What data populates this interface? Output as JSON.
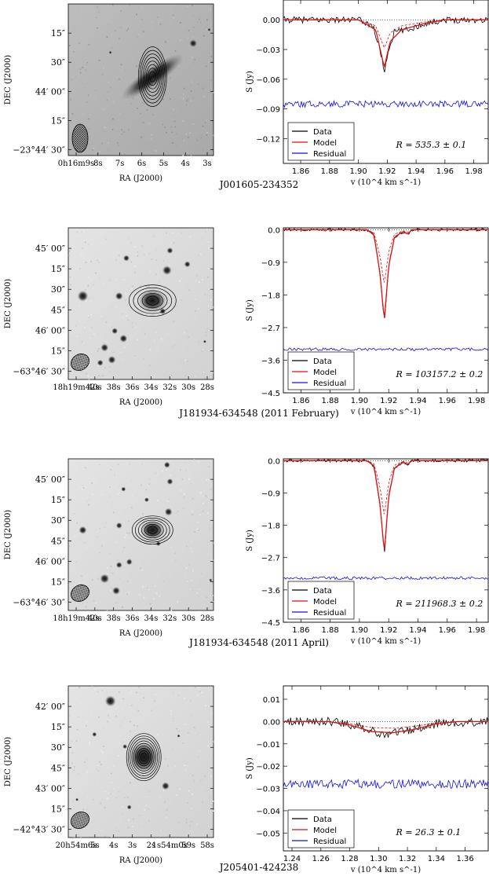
{
  "figure": {
    "panels": [
      {
        "source": "J001605-234352",
        "image": {
          "ylabel": "DEC (J2000)",
          "xlabel": "RA (J2000)",
          "yticks": [
            "15″",
            "30″",
            "44′ 00″",
            "15″",
            "−23°44′ 30″"
          ],
          "xticks": [
            "0h16m9s",
            "8s",
            "7s",
            "6s",
            "5s",
            "4s",
            "3s"
          ]
        },
        "chart_data": {
          "type": "line",
          "ylabel": "S (Jy)",
          "xlabel": "v (10^4 km s^-1)",
          "xlim": [
            1.848,
            1.99
          ],
          "ylim": [
            -0.145,
            0.02
          ],
          "yticks": [
            "0.00",
            "−0.03",
            "−0.06",
            "−0.09",
            "−0.12"
          ],
          "ytick_values": [
            0.0,
            -0.03,
            -0.06,
            -0.09,
            -0.12
          ],
          "xticks": [
            "1.86",
            "1.88",
            "1.90",
            "1.92",
            "1.94",
            "1.96",
            "1.98"
          ],
          "xtick_values": [
            1.86,
            1.88,
            1.9,
            1.92,
            1.94,
            1.96,
            1.98
          ],
          "legend": [
            "Data",
            "Model",
            "Residual"
          ],
          "annotation": "R = 535.3 ± 0.1",
          "series": [
            {
              "name": "Data",
              "points": [
                [
                  1.85,
                  0.0
                ],
                [
                  1.87,
                  0.0
                ],
                [
                  1.9,
                  0.0
                ],
                [
                  1.91,
                  -0.006
                ],
                [
                  1.915,
                  -0.03
                ],
                [
                  1.918,
                  -0.052
                ],
                [
                  1.921,
                  -0.03
                ],
                [
                  1.925,
                  -0.012
                ],
                [
                  1.935,
                  -0.01
                ],
                [
                  1.945,
                  -0.004
                ],
                [
                  1.96,
                  0.0
                ],
                [
                  1.99,
                  0.0
                ]
              ]
            },
            {
              "name": "Model",
              "points": [
                [
                  1.85,
                  0.0
                ],
                [
                  1.9,
                  0.0
                ],
                [
                  1.912,
                  -0.01
                ],
                [
                  1.918,
                  -0.048
                ],
                [
                  1.922,
                  -0.022
                ],
                [
                  1.93,
                  -0.01
                ],
                [
                  1.945,
                  -0.004
                ],
                [
                  1.96,
                  0.0
                ],
                [
                  1.99,
                  0.0
                ]
              ]
            },
            {
              "name": "Residual",
              "points": [
                [
                  1.85,
                  -0.085
                ],
                [
                  1.99,
                  -0.085
                ]
              ]
            }
          ]
        }
      },
      {
        "source": "J181934-634548 (2011 February)",
        "image": {
          "ylabel": "DEC (J2000)",
          "xlabel": "RA (J2000)",
          "yticks": [
            "45′ 00″",
            "15″",
            "30″",
            "45″",
            "46′ 00″",
            "15″",
            "−63°46′ 30″"
          ],
          "xticks": [
            "18h19m42s",
            "40s",
            "38s",
            "36s",
            "34s",
            "32s",
            "30s",
            "28s"
          ]
        },
        "chart_data": {
          "type": "line",
          "ylabel": "S (Jy)",
          "xlabel": "v (10^4 km s^-1)",
          "xlim": [
            1.848,
            1.988
          ],
          "ylim": [
            -4.5,
            0.05
          ],
          "yticks": [
            "0.0",
            "−0.9",
            "−1.8",
            "−2.7",
            "−3.6",
            "−4.5"
          ],
          "ytick_values": [
            0.0,
            -0.9,
            -1.8,
            -2.7,
            -3.6,
            -4.5
          ],
          "xticks": [
            "1.86",
            "1.88",
            "1.90",
            "1.92",
            "1.94",
            "1.96",
            "1.98"
          ],
          "xtick_values": [
            1.86,
            1.88,
            1.9,
            1.92,
            1.94,
            1.96,
            1.98
          ],
          "legend": [
            "Data",
            "Model",
            "Residual"
          ],
          "annotation": "R = 103157.2 ± 0.2",
          "series": [
            {
              "name": "Data",
              "points": [
                [
                  1.85,
                  0.0
                ],
                [
                  1.905,
                  0.0
                ],
                [
                  1.91,
                  -0.15
                ],
                [
                  1.914,
                  -1.2
                ],
                [
                  1.917,
                  -2.55
                ],
                [
                  1.92,
                  -1.0
                ],
                [
                  1.924,
                  -0.2
                ],
                [
                  1.93,
                  -0.05
                ],
                [
                  1.933,
                  -0.15
                ],
                [
                  1.936,
                  0.0
                ],
                [
                  1.99,
                  0.0
                ]
              ]
            },
            {
              "name": "Model",
              "points": [
                [
                  1.85,
                  0.0
                ],
                [
                  1.905,
                  0.0
                ],
                [
                  1.91,
                  -0.15
                ],
                [
                  1.914,
                  -1.2
                ],
                [
                  1.917,
                  -2.5
                ],
                [
                  1.92,
                  -1.0
                ],
                [
                  1.924,
                  -0.2
                ],
                [
                  1.93,
                  -0.05
                ],
                [
                  1.933,
                  -0.12
                ],
                [
                  1.936,
                  0.0
                ],
                [
                  1.99,
                  0.0
                ]
              ]
            },
            {
              "name": "Residual",
              "points": [
                [
                  1.85,
                  -3.3
                ],
                [
                  1.99,
                  -3.3
                ]
              ]
            }
          ]
        }
      },
      {
        "source": "J181934-634548 (2011 April)",
        "image": {
          "ylabel": "DEC (J2000)",
          "xlabel": "RA (J2000)",
          "yticks": [
            "45′ 00″",
            "15″",
            "30″",
            "45″",
            "46′ 00″",
            "15″",
            "−63°46′ 30″"
          ],
          "xticks": [
            "18h19m42s",
            "40s",
            "38s",
            "36s",
            "34s",
            "32s",
            "30s",
            "28s"
          ]
        },
        "chart_data": {
          "type": "line",
          "ylabel": "S (Jy)",
          "xlabel": "v (10^4 km s^-1)",
          "xlim": [
            1.848,
            1.988
          ],
          "ylim": [
            -4.5,
            0.05
          ],
          "yticks": [
            "0.0",
            "−0.9",
            "−1.8",
            "−2.7",
            "−3.6",
            "−4.5"
          ],
          "ytick_values": [
            0.0,
            -0.9,
            -1.8,
            -2.7,
            -3.6,
            -4.5
          ],
          "xticks": [
            "1.86",
            "1.88",
            "1.90",
            "1.92",
            "1.94",
            "1.96",
            "1.98"
          ],
          "xtick_values": [
            1.86,
            1.88,
            1.9,
            1.92,
            1.94,
            1.96,
            1.98
          ],
          "legend": [
            "Data",
            "Model",
            "Residual"
          ],
          "annotation": "R = 211968.3 ± 0.2",
          "series": [
            {
              "name": "Data",
              "points": [
                [
                  1.85,
                  0.0
                ],
                [
                  1.905,
                  0.0
                ],
                [
                  1.91,
                  -0.15
                ],
                [
                  1.914,
                  -1.2
                ],
                [
                  1.917,
                  -2.6
                ],
                [
                  1.92,
                  -1.0
                ],
                [
                  1.924,
                  -0.2
                ],
                [
                  1.93,
                  -0.05
                ],
                [
                  1.933,
                  -0.12
                ],
                [
                  1.936,
                  0.0
                ],
                [
                  1.99,
                  0.0
                ]
              ]
            },
            {
              "name": "Model",
              "points": [
                [
                  1.85,
                  0.0
                ],
                [
                  1.905,
                  0.0
                ],
                [
                  1.91,
                  -0.15
                ],
                [
                  1.914,
                  -1.2
                ],
                [
                  1.917,
                  -2.55
                ],
                [
                  1.92,
                  -1.0
                ],
                [
                  1.924,
                  -0.2
                ],
                [
                  1.93,
                  -0.05
                ],
                [
                  1.933,
                  -0.1
                ],
                [
                  1.936,
                  0.0
                ],
                [
                  1.99,
                  0.0
                ]
              ]
            },
            {
              "name": "Residual",
              "points": [
                [
                  1.85,
                  -3.27
                ],
                [
                  1.99,
                  -3.27
                ]
              ]
            }
          ]
        }
      },
      {
        "source": "J205401-424238",
        "image": {
          "ylabel": "DEC (J2000)",
          "xlabel": "RA (J2000)",
          "yticks": [
            "42′ 00″",
            "15″",
            "30″",
            "45″",
            "43′ 00″",
            "15″",
            "−42°43′ 30″"
          ],
          "xticks": [
            "20h54m6s",
            "5s",
            "4s",
            "3s",
            "2s",
            "1s54m0s",
            "59s",
            "58s"
          ]
        },
        "chart_data": {
          "type": "line",
          "ylabel": "S (Jy)",
          "xlabel": "v (10^4 km s^-1)",
          "xlim": [
            1.234,
            1.376
          ],
          "ylim": [
            -0.058,
            0.016
          ],
          "yticks": [
            "0.01",
            "0.00",
            "−0.01",
            "−0.02",
            "−0.03",
            "−0.04",
            "−0.05"
          ],
          "ytick_values": [
            0.01,
            0.0,
            -0.01,
            -0.02,
            -0.03,
            -0.04,
            -0.05
          ],
          "xticks": [
            "1.24",
            "1.26",
            "1.28",
            "1.30",
            "1.32",
            "1.34",
            "1.36"
          ],
          "xtick_values": [
            1.24,
            1.26,
            1.28,
            1.3,
            1.32,
            1.34,
            1.36
          ],
          "legend": [
            "Data",
            "Model",
            "Residual"
          ],
          "annotation": "R = 26.3 ± 0.1",
          "series": [
            {
              "name": "Data",
              "points": [
                [
                  1.235,
                  0.0
                ],
                [
                  1.27,
                  0.0
                ],
                [
                  1.29,
                  -0.003
                ],
                [
                  1.305,
                  -0.006
                ],
                [
                  1.32,
                  -0.004
                ],
                [
                  1.34,
                  -0.001
                ],
                [
                  1.376,
                  0.0
                ]
              ]
            },
            {
              "name": "Model",
              "points": [
                [
                  1.235,
                  0.0
                ],
                [
                  1.265,
                  0.0
                ],
                [
                  1.28,
                  -0.0015
                ],
                [
                  1.295,
                  -0.0045
                ],
                [
                  1.31,
                  -0.005
                ],
                [
                  1.325,
                  -0.0035
                ],
                [
                  1.34,
                  -0.001
                ],
                [
                  1.355,
                  0.0
                ],
                [
                  1.376,
                  0.0
                ]
              ]
            },
            {
              "name": "Residual",
              "points": [
                [
                  1.235,
                  -0.028
                ],
                [
                  1.376,
                  -0.028
                ]
              ]
            }
          ]
        }
      }
    ]
  },
  "colors": {
    "data": "#000000",
    "model": "#dd1111",
    "residual": "#1111dd",
    "image_bg_1": "#9a9a9a",
    "image_bg_2": "#d8d8d8"
  }
}
